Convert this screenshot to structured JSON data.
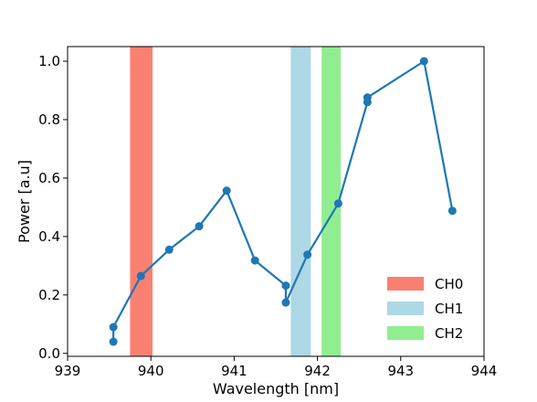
{
  "chart_data": {
    "type": "line",
    "title": "",
    "xlabel": "Wavelength [nm]",
    "ylabel": "Power [a.u]",
    "xlim": [
      939.0,
      944.0
    ],
    "ylim": [
      -0.01,
      1.05
    ],
    "xticks": [
      "939",
      "940",
      "941",
      "942",
      "943",
      "944"
    ],
    "yticks": [
      "0.0",
      "0.2",
      "0.4",
      "0.6",
      "0.8",
      "1.0"
    ],
    "grid": false,
    "legend_position": "bottom-right",
    "series": [
      {
        "color": "#1f77b4",
        "x": [
          939.55,
          939.55,
          939.88,
          940.22,
          940.58,
          940.91,
          941.25,
          941.62,
          941.62,
          941.88,
          942.25,
          942.6,
          942.6,
          943.28,
          943.62
        ],
        "y": [
          0.04,
          0.09,
          0.265,
          0.355,
          0.435,
          0.557,
          0.318,
          0.232,
          0.174,
          0.338,
          0.513,
          0.86,
          0.876,
          1.0,
          0.488
        ]
      }
    ],
    "bands": [
      {
        "name": "CH0",
        "x0": 939.75,
        "x1": 940.02,
        "color": "#fa8072"
      },
      {
        "name": "CH1",
        "x0": 941.68,
        "x1": 941.92,
        "color": "#add8e6"
      },
      {
        "name": "CH2",
        "x0": 942.05,
        "x1": 942.28,
        "color": "#90ee90"
      }
    ]
  }
}
